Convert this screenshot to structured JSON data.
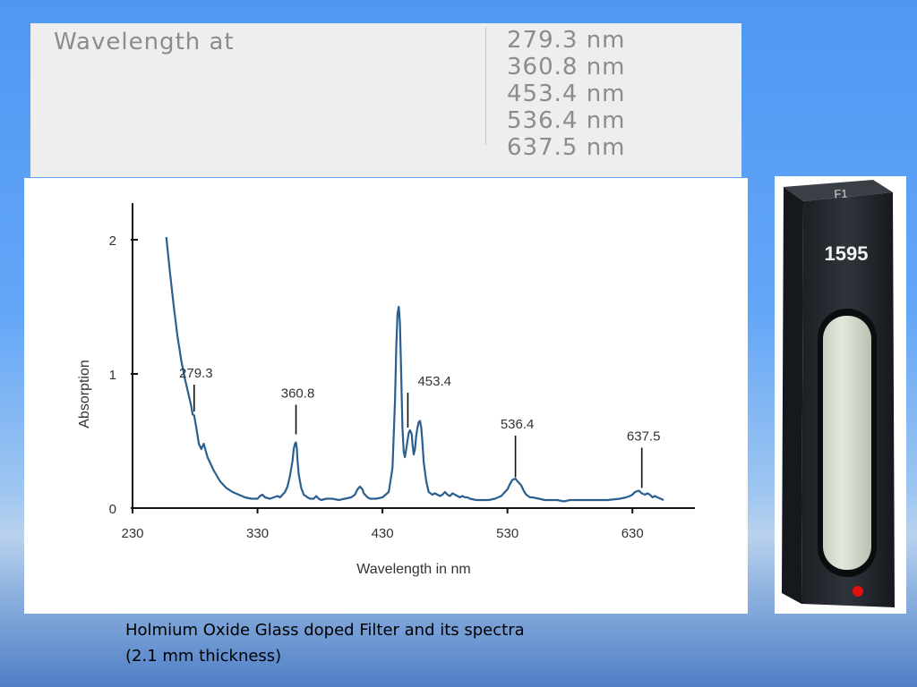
{
  "wavelength_table": {
    "label": "Wavelength at",
    "values": [
      "279.3 nm",
      "360.8 nm",
      "453.4 nm",
      "536.4 nm",
      "637.5 nm"
    ]
  },
  "filter_photo": {
    "top_label": "F1",
    "serial": "1595",
    "colors": {
      "body": "#2e3238",
      "window": "#d9e0d0",
      "led": "#e01010"
    }
  },
  "caption": {
    "line1": "Holmium Oxide Glass doped Filter and its spectra",
    "line2": "(2.1 mm thickness)"
  },
  "chart_data": {
    "type": "line",
    "xlabel": "Wavelength in nm",
    "ylabel": "Absorption",
    "xlim": [
      230,
      680
    ],
    "ylim": [
      0,
      2.1
    ],
    "x_ticks": [
      230,
      330,
      430,
      530,
      630
    ],
    "y_ticks": [
      0,
      1,
      2
    ],
    "grid": false,
    "line_color": "#2a5f8f",
    "series": [
      {
        "x": [
          257,
          260,
          263,
          266,
          269,
          272,
          275,
          277,
          278,
          279.3,
          281,
          283,
          285,
          286,
          287,
          290,
          295,
          300,
          305,
          310,
          315,
          320,
          325,
          330,
          332,
          334,
          336,
          340,
          343,
          346,
          348,
          350,
          352,
          354,
          356,
          358,
          359,
          360,
          360.8,
          361.5,
          362,
          363,
          365,
          367,
          370,
          372,
          375,
          377,
          379,
          381,
          385,
          390,
          395,
          400,
          405,
          408,
          410,
          412,
          414,
          415,
          418,
          420,
          425,
          430,
          435,
          438,
          440,
          441,
          442,
          443,
          444,
          445,
          446,
          447,
          448,
          450,
          451,
          452,
          453.4,
          454,
          455,
          456,
          457,
          458,
          459,
          460,
          461,
          462,
          463,
          465,
          467,
          470,
          472,
          474,
          476,
          478,
          480,
          482,
          484,
          486,
          488,
          490,
          492,
          494,
          496,
          498,
          500,
          505,
          510,
          515,
          520,
          525,
          527,
          530,
          532,
          534,
          536.4,
          538,
          540,
          541,
          543,
          545,
          548,
          550,
          555,
          560,
          565,
          570,
          575,
          580,
          590,
          600,
          610,
          620,
          625,
          628,
          630,
          632,
          635,
          637.5,
          640,
          642,
          644,
          646,
          648,
          650,
          655
        ],
        "y": [
          2.02,
          1.75,
          1.5,
          1.28,
          1.1,
          0.96,
          0.84,
          0.76,
          0.7,
          0.69,
          0.6,
          0.48,
          0.44,
          0.46,
          0.48,
          0.38,
          0.28,
          0.2,
          0.15,
          0.12,
          0.1,
          0.08,
          0.07,
          0.07,
          0.09,
          0.1,
          0.08,
          0.07,
          0.08,
          0.09,
          0.08,
          0.1,
          0.12,
          0.16,
          0.24,
          0.35,
          0.44,
          0.48,
          0.49,
          0.44,
          0.36,
          0.25,
          0.15,
          0.1,
          0.08,
          0.07,
          0.07,
          0.09,
          0.07,
          0.06,
          0.07,
          0.07,
          0.06,
          0.07,
          0.08,
          0.1,
          0.14,
          0.16,
          0.14,
          0.11,
          0.08,
          0.07,
          0.07,
          0.08,
          0.12,
          0.3,
          0.8,
          1.2,
          1.45,
          1.5,
          1.38,
          1.0,
          0.6,
          0.42,
          0.38,
          0.5,
          0.56,
          0.58,
          0.55,
          0.48,
          0.4,
          0.44,
          0.54,
          0.6,
          0.64,
          0.65,
          0.6,
          0.48,
          0.34,
          0.2,
          0.12,
          0.1,
          0.11,
          0.1,
          0.09,
          0.1,
          0.12,
          0.1,
          0.09,
          0.11,
          0.1,
          0.09,
          0.08,
          0.09,
          0.08,
          0.08,
          0.07,
          0.06,
          0.06,
          0.06,
          0.07,
          0.09,
          0.11,
          0.14,
          0.18,
          0.21,
          0.22,
          0.2,
          0.18,
          0.17,
          0.13,
          0.1,
          0.08,
          0.08,
          0.07,
          0.06,
          0.06,
          0.06,
          0.05,
          0.06,
          0.06,
          0.06,
          0.06,
          0.07,
          0.08,
          0.09,
          0.1,
          0.12,
          0.13,
          0.11,
          0.1,
          0.11,
          0.1,
          0.08,
          0.09,
          0.08,
          0.06
        ]
      }
    ],
    "annotations": [
      {
        "label": "279.3",
        "x": 279.3,
        "y_from": 0.72,
        "y_to": 0.92
      },
      {
        "label": "360.8",
        "x": 360.8,
        "y_from": 0.55,
        "y_to": 0.77
      },
      {
        "label": "453.4",
        "x": 450.3,
        "y_from": 0.6,
        "y_to": 0.86
      },
      {
        "label": "536.4",
        "x": 536.4,
        "y_from": 0.23,
        "y_to": 0.54
      },
      {
        "label": "637.5",
        "x": 637.5,
        "y_from": 0.15,
        "y_to": 0.45
      }
    ]
  }
}
